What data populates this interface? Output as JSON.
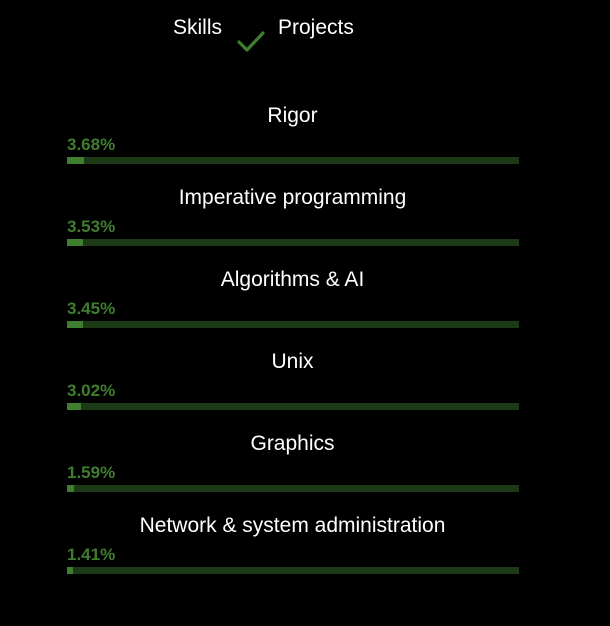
{
  "tabs": {
    "skills_label": "Skills",
    "projects_label": "Projects",
    "selected_icon": "check-icon"
  },
  "colors": {
    "accent": "#3f7e2e",
    "track": "#1b3a15",
    "background": "#000000",
    "text": "#ffffff"
  },
  "skills": [
    {
      "name": "Rigor",
      "percent_label": "3.68%",
      "value": 3.68
    },
    {
      "name": "Imperative programming",
      "percent_label": "3.53%",
      "value": 3.53
    },
    {
      "name": "Algorithms & AI",
      "percent_label": "3.45%",
      "value": 3.45
    },
    {
      "name": "Unix",
      "percent_label": "3.02%",
      "value": 3.02
    },
    {
      "name": "Graphics",
      "percent_label": "1.59%",
      "value": 1.59
    },
    {
      "name": "Network & system administration",
      "percent_label": "1.41%",
      "value": 1.41
    }
  ]
}
